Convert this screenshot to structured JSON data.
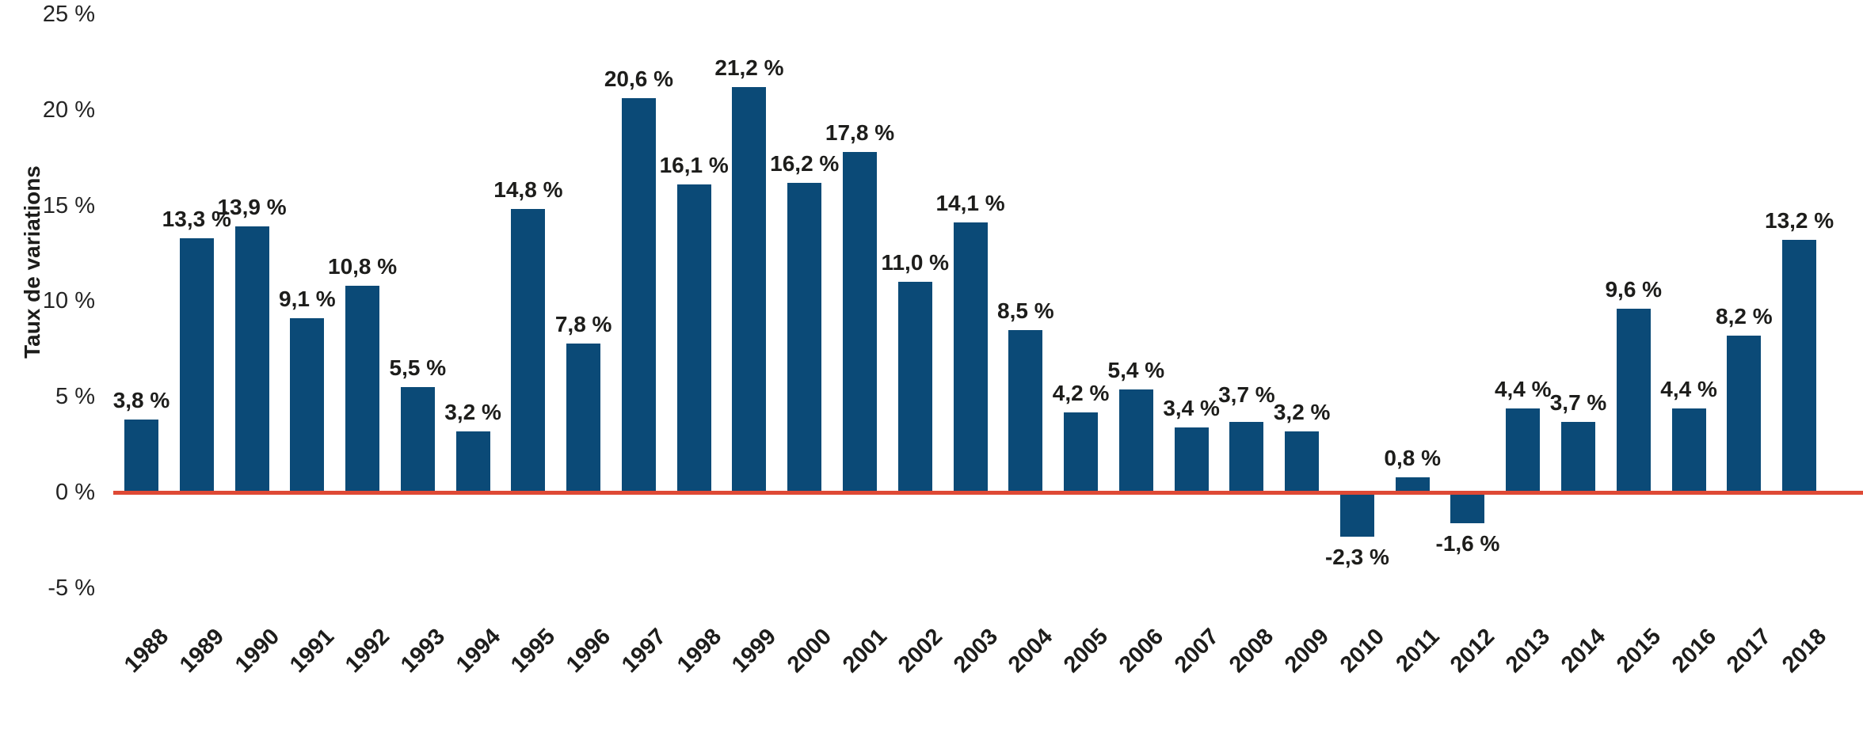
{
  "chart_data": {
    "type": "bar",
    "title": "",
    "xlabel": "",
    "ylabel": "Taux de variations",
    "ylim": [
      -5,
      25
    ],
    "grid": false,
    "legend_position": "none",
    "bar_color": "#0B4A77",
    "zero_line_color": "#DE4935",
    "categories": [
      "1988",
      "1989",
      "1990",
      "1991",
      "1992",
      "1993",
      "1994",
      "1995",
      "1996",
      "1997",
      "1998",
      "1999",
      "2000",
      "2001",
      "2002",
      "2003",
      "2004",
      "2005",
      "2006",
      "2007",
      "2008",
      "2009",
      "2010",
      "2011",
      "2012",
      "2013",
      "2014",
      "2015",
      "2016",
      "2017",
      "2018"
    ],
    "values": [
      3.8,
      13.3,
      13.9,
      9.1,
      10.8,
      5.5,
      3.2,
      14.8,
      7.8,
      20.6,
      16.1,
      21.2,
      16.2,
      17.8,
      11.0,
      14.1,
      8.5,
      4.2,
      5.4,
      3.4,
      3.7,
      3.2,
      -2.3,
      0.8,
      -1.6,
      4.4,
      3.7,
      9.6,
      4.4,
      8.2,
      13.2
    ],
    "value_labels": [
      "3,8 %",
      "13,3 %",
      "13,9 %",
      "9,1 %",
      "10,8 %",
      "5,5 %",
      "3,2 %",
      "14,8 %",
      "7,8 %",
      "20,6 %",
      "16,1 %",
      "21,2 %",
      "16,2 %",
      "17,8 %",
      "11,0 %",
      "14,1 %",
      "8,5 %",
      "4,2 %",
      "5,4 %",
      "3,4 %",
      "3,7 %",
      "3,2 %",
      "-2,3 %",
      "0,8 %",
      "-1,6 %",
      "4,4 %",
      "3,7 %",
      "9,6 %",
      "4,4 %",
      "8,2 %",
      "13,2 %"
    ],
    "y_ticks": [
      {
        "value": 25,
        "label": "25 %"
      },
      {
        "value": 20,
        "label": "20 %"
      },
      {
        "value": 15,
        "label": "15 %"
      },
      {
        "value": 10,
        "label": "10 %"
      },
      {
        "value": 5,
        "label": "5 %"
      },
      {
        "value": 0,
        "label": "0 %"
      },
      {
        "value": -5,
        "label": "-5 %"
      }
    ],
    "text_color": "#1d1d1b"
  }
}
